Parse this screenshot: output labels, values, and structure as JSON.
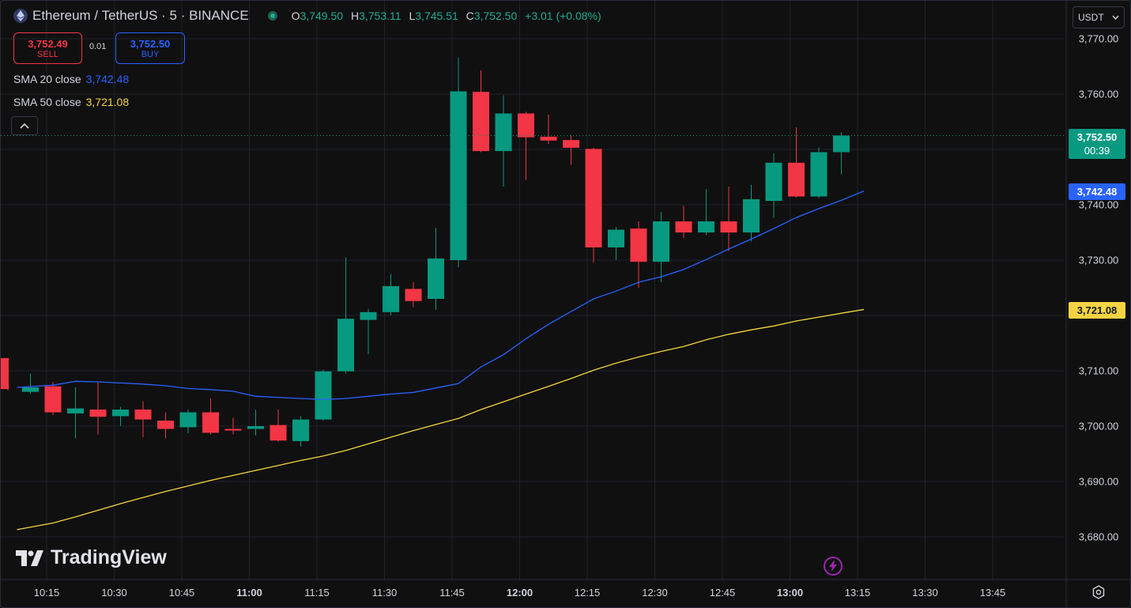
{
  "header": {
    "symbol_title": "Ethereum / TetherUS · 5 · BINANCE",
    "ohlc": {
      "o_label": "O",
      "o_value": "3,749.50",
      "h_label": "H",
      "h_value": "3,753.11",
      "l_label": "L",
      "l_value": "3,745.51",
      "c_label": "C",
      "c_value": "3,752.50",
      "change": "+3.01 (+0.08%)"
    }
  },
  "trade": {
    "sell_price": "3,752.49",
    "sell_label": "SELL",
    "spread": "0.01",
    "buy_price": "3,752.50",
    "buy_label": "BUY"
  },
  "indicators": {
    "sma20": {
      "label": "SMA 20 close",
      "value": "3,742.48"
    },
    "sma50": {
      "label": "SMA 50 close",
      "value": "3,721.08"
    }
  },
  "currency": {
    "label": "USDT"
  },
  "price_tags": {
    "last_price": "3,752.50",
    "countdown": "00:39",
    "sma20": "3,742.48",
    "sma50": "3,721.08"
  },
  "branding": {
    "name": "TradingView"
  },
  "colors": {
    "up": "#089981",
    "down": "#f23645",
    "sma20": "#2962ff",
    "sma50": "#f5d442",
    "grid": "#1e222d",
    "text": "#d1d4dc",
    "bg": "#101010"
  },
  "chart_data": {
    "type": "candlestick",
    "interval_minutes": 5,
    "y_ticks": [
      3770,
      3760,
      3750,
      3740,
      3730,
      3720,
      3710,
      3700,
      3690,
      3680
    ],
    "y_tick_labels": [
      "3,770.00",
      "3,760.00",
      "3,750.00",
      "3,740.00",
      "3,730.00",
      "",
      "3,710.00",
      "3,700.00",
      "3,690.00",
      "3,680.00"
    ],
    "ylim": [
      3678,
      3771
    ],
    "x_tick_labels": [
      "10:15",
      "10:30",
      "10:45",
      "11:00",
      "11:15",
      "11:30",
      "11:45",
      "12:00",
      "12:15",
      "12:30",
      "12:45",
      "13:00",
      "13:15",
      "13:30",
      "13:45"
    ],
    "x_tick_bold": [
      "11:00",
      "12:00",
      "13:00"
    ],
    "candles": [
      {
        "t": "10:05",
        "o": 3712.3,
        "h": 3712.3,
        "l": 3706.5,
        "c": 3706.7
      },
      {
        "t": "10:10",
        "o": 3706.2,
        "h": 3709.5,
        "l": 3705.8,
        "c": 3707.0
      },
      {
        "t": "10:15",
        "o": 3707.2,
        "h": 3708.0,
        "l": 3702.0,
        "c": 3702.5
      },
      {
        "t": "10:20",
        "o": 3702.3,
        "h": 3707.0,
        "l": 3697.8,
        "c": 3703.2
      },
      {
        "t": "10:25",
        "o": 3703.0,
        "h": 3708.0,
        "l": 3698.5,
        "c": 3701.7
      },
      {
        "t": "10:30",
        "o": 3701.8,
        "h": 3703.5,
        "l": 3700.0,
        "c": 3703.0
      },
      {
        "t": "10:35",
        "o": 3703.0,
        "h": 3704.5,
        "l": 3698.0,
        "c": 3701.2
      },
      {
        "t": "10:40",
        "o": 3701.0,
        "h": 3702.5,
        "l": 3697.8,
        "c": 3699.5
      },
      {
        "t": "10:45",
        "o": 3699.8,
        "h": 3703.0,
        "l": 3698.7,
        "c": 3702.5
      },
      {
        "t": "10:50",
        "o": 3702.5,
        "h": 3705.0,
        "l": 3698.5,
        "c": 3698.8
      },
      {
        "t": "10:55",
        "o": 3699.5,
        "h": 3701.5,
        "l": 3698.5,
        "c": 3699.2
      },
      {
        "t": "11:00",
        "o": 3699.5,
        "h": 3703.0,
        "l": 3698.3,
        "c": 3700.0
      },
      {
        "t": "11:05",
        "o": 3700.2,
        "h": 3703.0,
        "l": 3697.2,
        "c": 3697.4
      },
      {
        "t": "11:10",
        "o": 3697.3,
        "h": 3701.8,
        "l": 3696.3,
        "c": 3701.2
      },
      {
        "t": "11:15",
        "o": 3701.2,
        "h": 3710.2,
        "l": 3701.0,
        "c": 3709.9
      },
      {
        "t": "11:20",
        "o": 3709.9,
        "h": 3730.5,
        "l": 3709.5,
        "c": 3719.4
      },
      {
        "t": "11:25",
        "o": 3719.2,
        "h": 3721.2,
        "l": 3713.0,
        "c": 3720.6
      },
      {
        "t": "11:30",
        "o": 3720.6,
        "h": 3727.5,
        "l": 3720.0,
        "c": 3725.3
      },
      {
        "t": "11:35",
        "o": 3724.8,
        "h": 3726.0,
        "l": 3721.5,
        "c": 3722.6
      },
      {
        "t": "11:40",
        "o": 3723.0,
        "h": 3735.8,
        "l": 3721.0,
        "c": 3730.3
      },
      {
        "t": "11:45",
        "o": 3730.0,
        "h": 3766.6,
        "l": 3728.7,
        "c": 3760.5
      },
      {
        "t": "11:50",
        "o": 3760.4,
        "h": 3764.3,
        "l": 3749.5,
        "c": 3749.7
      },
      {
        "t": "11:55",
        "o": 3749.7,
        "h": 3759.8,
        "l": 3743.3,
        "c": 3756.5
      },
      {
        "t": "12:00",
        "o": 3756.5,
        "h": 3756.8,
        "l": 3744.5,
        "c": 3752.2
      },
      {
        "t": "12:05",
        "o": 3752.3,
        "h": 3756.3,
        "l": 3751.0,
        "c": 3751.6
      },
      {
        "t": "12:10",
        "o": 3751.7,
        "h": 3752.5,
        "l": 3747.2,
        "c": 3750.3
      },
      {
        "t": "12:15",
        "o": 3750.1,
        "h": 3750.3,
        "l": 3729.5,
        "c": 3732.3
      },
      {
        "t": "12:20",
        "o": 3732.3,
        "h": 3736.0,
        "l": 3730.0,
        "c": 3735.5
      },
      {
        "t": "12:25",
        "o": 3735.7,
        "h": 3737.0,
        "l": 3725.0,
        "c": 3729.7
      },
      {
        "t": "12:30",
        "o": 3729.7,
        "h": 3738.7,
        "l": 3726.0,
        "c": 3737.0
      },
      {
        "t": "12:35",
        "o": 3737.0,
        "h": 3739.8,
        "l": 3734.0,
        "c": 3735.0
      },
      {
        "t": "12:40",
        "o": 3735.0,
        "h": 3742.8,
        "l": 3734.5,
        "c": 3737.0
      },
      {
        "t": "12:45",
        "o": 3737.0,
        "h": 3743.3,
        "l": 3731.6,
        "c": 3735.0
      },
      {
        "t": "12:50",
        "o": 3735.0,
        "h": 3743.6,
        "l": 3733.4,
        "c": 3741.0
      },
      {
        "t": "12:55",
        "o": 3740.7,
        "h": 3749.3,
        "l": 3737.6,
        "c": 3747.6
      },
      {
        "t": "13:00",
        "o": 3747.6,
        "h": 3754.0,
        "l": 3741.3,
        "c": 3741.5
      },
      {
        "t": "13:05",
        "o": 3741.5,
        "h": 3750.4,
        "l": 3741.2,
        "c": 3749.5
      },
      {
        "t": "13:10",
        "o": 3749.5,
        "h": 3753.11,
        "l": 3745.51,
        "c": 3752.5
      }
    ],
    "sma20": [
      3707.0,
      3707.4,
      3708.1,
      3708.0,
      3707.8,
      3707.6,
      3707.3,
      3706.8,
      3706.6,
      3706.3,
      3705.4,
      3705.2,
      3705.0,
      3704.8,
      3705.0,
      3705.4,
      3705.8,
      3706.1,
      3706.9,
      3707.7,
      3710.7,
      3712.9,
      3715.8,
      3718.4,
      3720.7,
      3723.0,
      3724.4,
      3726.0,
      3727.0,
      3728.3,
      3730.1,
      3732.0,
      3733.8,
      3735.7,
      3737.7,
      3739.3,
      3740.8,
      3742.48
    ],
    "sma50": [
      3681.3,
      3682.5,
      3683.6,
      3684.8,
      3686.0,
      3687.1,
      3688.2,
      3689.2,
      3690.2,
      3691.1,
      3692.0,
      3692.9,
      3693.8,
      3694.6,
      3695.6,
      3696.8,
      3698.0,
      3699.2,
      3700.3,
      3701.4,
      3703.0,
      3704.4,
      3705.8,
      3707.2,
      3708.6,
      3710.1,
      3711.4,
      3712.5,
      3713.5,
      3714.4,
      3715.6,
      3716.6,
      3717.4,
      3718.1,
      3719.0,
      3719.7,
      3720.4,
      3721.08
    ],
    "last_price": 3752.5
  }
}
